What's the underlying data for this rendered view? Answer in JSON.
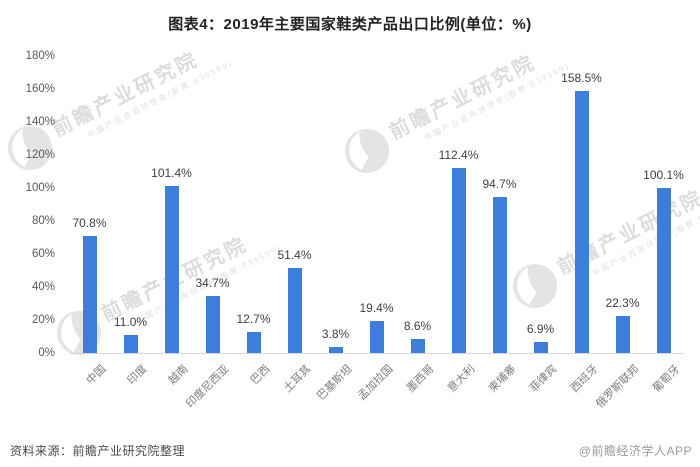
{
  "title": "图表4：2019年主要国家鞋类产品出口比例(单位：%)",
  "chart_data": {
    "type": "bar",
    "title": "图表4：2019年主要国家鞋类产品出口比例(单位：%)",
    "unit": "%",
    "categories": [
      "中国",
      "印度",
      "越南",
      "印度尼西亚",
      "巴西",
      "土耳其",
      "巴基斯坦",
      "孟加拉国",
      "墨西哥",
      "意大利",
      "柬埔寨",
      "菲律宾",
      "西班牙",
      "俄罗斯联邦",
      "葡萄牙"
    ],
    "values": [
      70.8,
      11.0,
      101.4,
      34.7,
      12.7,
      51.4,
      3.8,
      19.4,
      8.6,
      112.4,
      94.7,
      6.9,
      158.5,
      22.3,
      100.1
    ],
    "value_labels": [
      "70.8%",
      "11.0%",
      "101.4%",
      "34.7%",
      "12.7%",
      "51.4%",
      "3.8%",
      "19.4%",
      "8.6%",
      "112.4%",
      "94.7%",
      "6.9%",
      "158.5%",
      "22.3%",
      "100.1%"
    ],
    "y_axis": {
      "min": 0,
      "max": 180,
      "tick_step": 20,
      "tick_labels": [
        "0%",
        "20%",
        "40%",
        "60%",
        "80%",
        "100%",
        "120%",
        "140%",
        "160%",
        "180%"
      ]
    },
    "bar_color": "#3d7edc",
    "grid": false,
    "legend_position": "none"
  },
  "watermark": {
    "brand": "前瞻产业研究院",
    "tagline": "中国产业咨询领导者(股票:839599)"
  },
  "footer": {
    "source": "资料来源：前瞻产业研究院整理",
    "attribution": "@前瞻经济学人APP"
  }
}
